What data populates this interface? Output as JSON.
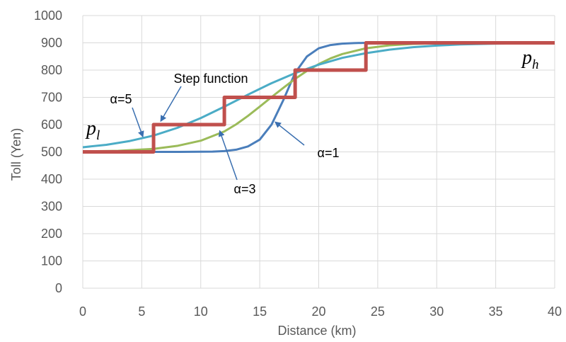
{
  "chart_data": {
    "type": "line",
    "xlabel": "Distance (km)",
    "ylabel": "Toll (Yen)",
    "xlim": [
      0,
      40
    ],
    "ylim": [
      0,
      1000
    ],
    "x_ticks": [
      "0",
      "5",
      "10",
      "15",
      "20",
      "25",
      "30",
      "35",
      "40"
    ],
    "y_ticks": [
      "0",
      "100",
      "200",
      "300",
      "400",
      "500",
      "600",
      "700",
      "800",
      "900",
      "1000"
    ],
    "grid": true,
    "legend": "none",
    "series": [
      {
        "name": "α=1",
        "color": "#4a7ebb",
        "x": [
          0,
          4,
          8,
          11,
          12,
          13,
          14,
          15,
          16,
          17,
          18,
          19,
          20,
          21,
          22,
          23,
          24,
          26,
          30,
          35,
          40
        ],
        "y": [
          500,
          500,
          500,
          501,
          503,
          508,
          520,
          545,
          600,
          690,
          790,
          850,
          880,
          892,
          897,
          899,
          900,
          900,
          900,
          900,
          900
        ]
      },
      {
        "name": "α=3",
        "color": "#9bbb59",
        "x": [
          0,
          3,
          6,
          8,
          10,
          12,
          13,
          14,
          15,
          16,
          17,
          18,
          19,
          20,
          21,
          22,
          24,
          26,
          28,
          30,
          35,
          40
        ],
        "y": [
          502,
          504,
          511,
          522,
          541,
          575,
          601,
          632,
          666,
          701,
          735,
          768,
          797,
          822,
          843,
          859,
          880,
          891,
          896,
          898,
          900,
          900
        ]
      },
      {
        "name": "α=5",
        "color": "#4bacc6",
        "x": [
          0,
          2,
          4,
          6,
          8,
          10,
          12,
          14,
          16,
          18,
          20,
          22,
          24,
          26,
          28,
          30,
          32,
          35,
          40
        ],
        "y": [
          517,
          526,
          540,
          560,
          588,
          624,
          666,
          710,
          752,
          789,
          820,
          845,
          862,
          875,
          884,
          890,
          894,
          897,
          899
        ]
      },
      {
        "name": "Step function",
        "color": "#c0504d",
        "x": [
          0,
          6,
          6,
          12,
          12,
          18,
          18,
          24,
          24,
          40
        ],
        "y": [
          500,
          500,
          600,
          600,
          700,
          700,
          800,
          800,
          900,
          900
        ]
      }
    ],
    "annotations": [
      {
        "text": "Step function"
      },
      {
        "text": "α=5"
      },
      {
        "text": "α=3"
      },
      {
        "text": "α=1"
      },
      {
        "text": "p",
        "sub": "l"
      },
      {
        "text": "p",
        "sub": "h"
      }
    ]
  }
}
